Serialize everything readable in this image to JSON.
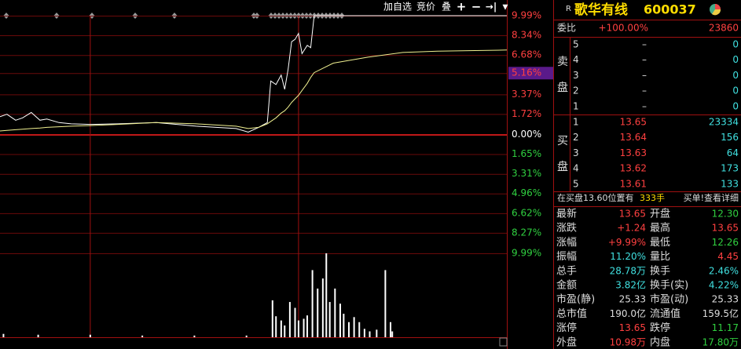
{
  "chart_data": [
    {
      "type": "line",
      "x": [
        -52,
        -48,
        -43,
        -39,
        -34,
        -29,
        -25,
        -18,
        -11,
        0,
        16,
        38,
        61,
        84,
        91,
        97,
        102,
        104,
        107,
        110,
        112,
        114,
        116,
        118,
        120,
        122,
        125,
        127,
        129,
        140,
        160,
        180,
        200,
        240
      ],
      "series": [
        {
          "color": "#ffffff",
          "values": [
            1.5,
            1.7,
            1.2,
            1.4,
            1.85,
            1.2,
            1.3,
            1.0,
            0.9,
            0.85,
            0.9,
            1.0,
            0.7,
            0.5,
            0.2,
            0.6,
            1.0,
            4.5,
            4.2,
            5.0,
            3.8,
            5.5,
            7.8,
            8.0,
            8.5,
            6.8,
            7.5,
            7.3,
            9.99,
            9.99,
            9.99,
            9.99,
            9.99,
            9.99
          ]
        },
        {
          "color": "#f0f090",
          "values": [
            0.3,
            0.35,
            0.4,
            0.45,
            0.5,
            0.55,
            0.6,
            0.65,
            0.7,
            0.75,
            0.85,
            1.0,
            0.9,
            0.7,
            0.5,
            0.6,
            0.9,
            1.1,
            1.4,
            1.8,
            2.0,
            2.3,
            2.7,
            3.0,
            3.3,
            3.7,
            4.3,
            4.8,
            5.2,
            6.0,
            6.5,
            6.9,
            7.0,
            7.1
          ]
        }
      ],
      "xlim": [
        -52,
        240
      ],
      "xticks": [
        0,
        120
      ],
      "ylim": [
        -9.99,
        9.99
      ],
      "yticks": [
        {
          "value": 9.99,
          "label": "9.99%"
        },
        {
          "value": 8.34,
          "label": "8.34%"
        },
        {
          "value": 6.68,
          "label": "6.68%"
        },
        {
          "value": 5.16,
          "label": "5.16%"
        },
        {
          "value": 3.37,
          "label": "3.37%"
        },
        {
          "value": 1.72,
          "label": "1.72%"
        },
        {
          "value": 0,
          "label": "0.00%"
        },
        {
          "value": -1.65,
          "label": "1.65%"
        },
        {
          "value": -3.31,
          "label": "3.31%"
        },
        {
          "value": -4.96,
          "label": "4.96%"
        },
        {
          "value": -6.62,
          "label": "6.62%"
        },
        {
          "value": -8.27,
          "label": "8.27%"
        },
        {
          "value": -9.99,
          "label": "9.99%"
        }
      ],
      "grid": true
    },
    {
      "type": "bar",
      "color": "#ffffff",
      "x": [
        -50,
        -30,
        0,
        30,
        60,
        90,
        105,
        107,
        110,
        112,
        115,
        118,
        120,
        123,
        125,
        128,
        131,
        134,
        136,
        138,
        141,
        144,
        146,
        149,
        152,
        155,
        158,
        161,
        165,
        170,
        173,
        174
      ],
      "values": [
        4,
        3,
        3,
        2,
        2,
        2,
        44,
        25,
        20,
        14,
        42,
        35,
        20,
        22,
        26,
        80,
        58,
        70,
        100,
        42,
        58,
        40,
        28,
        18,
        24,
        18,
        10,
        7,
        9,
        80,
        18,
        7
      ],
      "xlim": [
        -52,
        240
      ],
      "ylim": [
        0,
        100
      ]
    }
  ],
  "toolbar": [
    "加自选",
    "竞价",
    "叠"
  ],
  "quote": {
    "badge": "R",
    "name": "歌华有线",
    "code": "600037",
    "ratio": [
      "委比",
      "+100.00%",
      "23860"
    ],
    "sell_label": [
      "卖",
      "盘"
    ],
    "buy_label": [
      "买",
      "盘"
    ],
    "asks": [
      [
        "5",
        "–",
        "0"
      ],
      [
        "4",
        "–",
        "0"
      ],
      [
        "3",
        "–",
        "0"
      ],
      [
        "2",
        "–",
        "0"
      ],
      [
        "1",
        "–",
        "0"
      ]
    ],
    "bids": [
      [
        "1",
        "13.65",
        "23334"
      ],
      [
        "2",
        "13.64",
        "156"
      ],
      [
        "3",
        "13.63",
        "64"
      ],
      [
        "4",
        "13.62",
        "173"
      ],
      [
        "5",
        "13.61",
        "133"
      ]
    ],
    "notice": [
      "在买盘13.60位置有",
      "333手",
      "买单!查看详细"
    ],
    "stats": [
      [
        "最新",
        "13.65",
        "开盘",
        "12.30"
      ],
      [
        "涨跌",
        "+1.24",
        "最高",
        "13.65"
      ],
      [
        "涨幅",
        "+9.99%",
        "最低",
        "12.26"
      ],
      [
        "振幅",
        "11.20%",
        "量比",
        "4.45"
      ],
      [
        "总手",
        "28.78万",
        "换手",
        "2.46%"
      ],
      [
        "金额",
        "3.82亿",
        "换手(实)",
        "4.22%"
      ],
      [
        "市盈(静)",
        "25.33",
        "市盈(动)",
        "25.33"
      ],
      [
        "总市值",
        "190.0亿",
        "流通值",
        "159.5亿"
      ],
      [
        "涨停",
        "13.65",
        "跌停",
        "11.17"
      ],
      [
        "外盘",
        "10.98万",
        "内盘",
        "17.80万"
      ]
    ]
  }
}
